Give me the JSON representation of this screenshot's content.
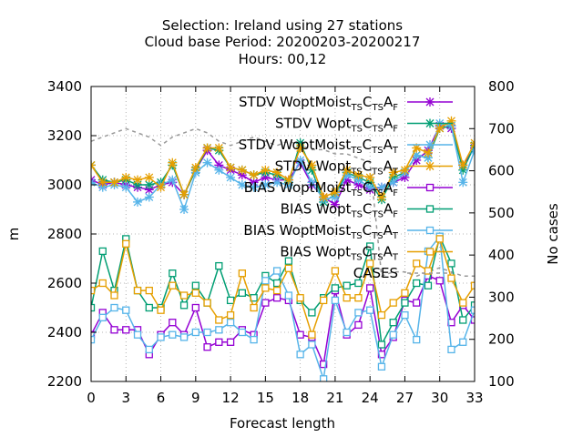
{
  "chart_data": {
    "type": "line",
    "title_lines": [
      "Selection: Ireland using    27 stations",
      "Cloud base   Period: 20200203-20200217",
      "Hours:  00,12"
    ],
    "xlabel": "Forecast length",
    "ylabel": "m",
    "y2label": "No cases",
    "xlim": [
      0,
      33
    ],
    "ylim": [
      2200,
      3400
    ],
    "y2lim": [
      100,
      800
    ],
    "x_ticks": [
      0,
      3,
      6,
      9,
      12,
      15,
      18,
      21,
      24,
      27,
      30,
      33
    ],
    "y_ticks": [
      2200,
      2400,
      2600,
      2800,
      3000,
      3200,
      3400
    ],
    "y2_ticks": [
      100,
      200,
      300,
      400,
      500,
      600,
      700,
      800
    ],
    "grid": true,
    "legend_position": "top-right",
    "x": [
      0,
      1,
      2,
      3,
      4,
      5,
      6,
      7,
      8,
      9,
      10,
      11,
      12,
      13,
      14,
      15,
      16,
      17,
      18,
      19,
      20,
      21,
      22,
      23,
      24,
      25,
      26,
      27,
      28,
      29,
      30,
      31,
      32,
      33
    ],
    "series": [
      {
        "name_main": "STDV WoptMoist",
        "name_sub1": "TS",
        "name_mid1": "C",
        "name_sub2": "TS",
        "name_mid2": "A",
        "name_sub3": "F",
        "color": "#9400d3",
        "marker": "star",
        "values": [
          3020,
          3000,
          3010,
          3000,
          2990,
          2980,
          3000,
          3010,
          2960,
          3060,
          3140,
          3080,
          3060,
          3040,
          3010,
          3030,
          3020,
          3020,
          3090,
          3000,
          2950,
          2920,
          3020,
          3000,
          2980,
          2990,
          3010,
          3030,
          3100,
          3140,
          3240,
          3230,
          3080,
          3150
        ]
      },
      {
        "name_main": "STDV Wopt",
        "name_sub1": "TS",
        "name_mid1": "C",
        "name_sub2": "TS",
        "name_mid2": "A",
        "name_sub3": "F",
        "color": "#009e73",
        "marker": "star",
        "values": [
          3080,
          3020,
          3010,
          3020,
          3000,
          3000,
          3010,
          3080,
          2960,
          3060,
          3150,
          3140,
          3070,
          3060,
          3040,
          3050,
          3040,
          3010,
          3170,
          3060,
          2930,
          2960,
          3050,
          3030,
          3010,
          2940,
          3030,
          3050,
          3120,
          3110,
          3230,
          3240,
          3060,
          3160
        ]
      },
      {
        "name_main": "STDV WoptMoist",
        "name_sub1": "TS",
        "name_mid1": "C",
        "name_sub2": "TS",
        "name_mid2": "A",
        "name_sub3": "T",
        "color": "#56b4e9",
        "marker": "star",
        "values": [
          3010,
          2990,
          3000,
          2990,
          2930,
          2950,
          3000,
          3020,
          2900,
          3050,
          3090,
          3060,
          3030,
          3000,
          2990,
          3000,
          3010,
          3000,
          3100,
          3010,
          2940,
          2950,
          3040,
          3020,
          2990,
          2990,
          3010,
          3050,
          3120,
          3110,
          3250,
          3240,
          3010,
          3140
        ]
      },
      {
        "name_main": "STDV Wopt",
        "name_sub1": "TS",
        "name_mid1": "C",
        "name_sub2": "TS",
        "name_mid2": "A",
        "name_sub3": "T",
        "color": "#e69f00",
        "marker": "star",
        "values": [
          3080,
          3010,
          3010,
          3030,
          3020,
          3030,
          2990,
          3090,
          2960,
          3070,
          3150,
          3150,
          3070,
          3060,
          3040,
          3060,
          3050,
          3020,
          3150,
          3080,
          2950,
          2970,
          3060,
          3040,
          3030,
          2950,
          3050,
          3060,
          3150,
          3130,
          3230,
          3260,
          3080,
          3170
        ]
      },
      {
        "name_main": "BIAS WoptMoist",
        "name_sub1": "TS",
        "name_mid1": "C",
        "name_sub2": "TS",
        "name_mid2": "A",
        "name_sub3": "F",
        "color": "#9400d3",
        "marker": "square",
        "values": [
          2390,
          2480,
          2410,
          2410,
          2410,
          2310,
          2390,
          2440,
          2390,
          2500,
          2340,
          2360,
          2360,
          2410,
          2390,
          2520,
          2540,
          2530,
          2390,
          2380,
          2270,
          2570,
          2390,
          2430,
          2580,
          2310,
          2380,
          2530,
          2520,
          2630,
          2610,
          2440,
          2510,
          2450
        ]
      },
      {
        "name_main": "BIAS Wopt",
        "name_sub1": "TS",
        "name_mid1": "C",
        "name_sub2": "TS",
        "name_mid2": "A",
        "name_sub3": "F",
        "color": "#009e73",
        "marker": "square",
        "values": [
          2500,
          2730,
          2570,
          2780,
          2570,
          2500,
          2500,
          2640,
          2510,
          2590,
          2520,
          2670,
          2530,
          2560,
          2540,
          2630,
          2600,
          2690,
          2530,
          2480,
          2540,
          2580,
          2590,
          2600,
          2750,
          2350,
          2440,
          2520,
          2600,
          2590,
          2790,
          2680,
          2450,
          2510
        ]
      },
      {
        "name_main": "BIAS WoptMoist",
        "name_sub1": "TS",
        "name_mid1": "C",
        "name_sub2": "TS",
        "name_mid2": "A",
        "name_sub3": "T",
        "color": "#56b4e9",
        "marker": "square",
        "values": [
          2370,
          2460,
          2500,
          2490,
          2390,
          2330,
          2380,
          2390,
          2380,
          2400,
          2400,
          2410,
          2440,
          2400,
          2370,
          2610,
          2650,
          2550,
          2310,
          2350,
          2210,
          2530,
          2400,
          2480,
          2490,
          2260,
          2390,
          2470,
          2370,
          2730,
          2790,
          2330,
          2360,
          2490
        ]
      },
      {
        "name_main": "BIAS Wopt",
        "name_sub1": "TS",
        "name_mid1": "C",
        "name_sub2": "TS",
        "name_mid2": "A",
        "name_sub3": "T",
        "color": "#e69f00",
        "marker": "square",
        "values": [
          2570,
          2600,
          2550,
          2760,
          2570,
          2570,
          2490,
          2590,
          2550,
          2560,
          2520,
          2450,
          2470,
          2640,
          2500,
          2580,
          2570,
          2660,
          2540,
          2390,
          2530,
          2650,
          2540,
          2540,
          2680,
          2470,
          2520,
          2560,
          2680,
          2650,
          2780,
          2620,
          2520,
          2590
        ]
      },
      {
        "name_main": "CASES",
        "color": "#999999",
        "marker": "none",
        "dashed": true,
        "axis": "y2",
        "values": [
          670,
          680,
          690,
          700,
          690,
          680,
          660,
          680,
          690,
          700,
          690,
          670,
          660,
          670,
          680,
          670,
          660,
          670,
          660,
          650,
          650,
          640,
          640,
          630,
          620,
          350,
          360,
          360,
          350,
          360,
          370,
          360,
          350,
          350
        ]
      }
    ]
  }
}
